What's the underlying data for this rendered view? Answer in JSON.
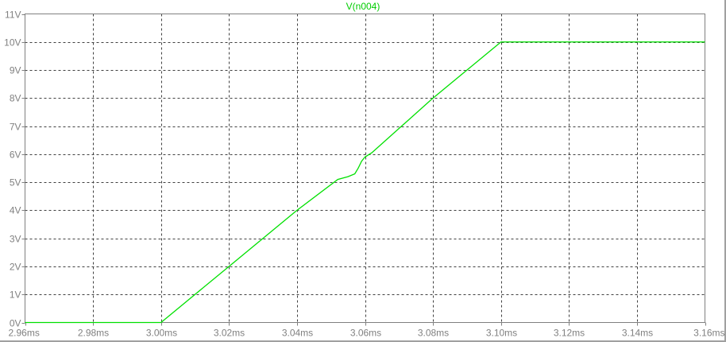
{
  "chart_data": {
    "type": "line",
    "title": "V(n004)",
    "xlabel": "",
    "ylabel": "",
    "xlim": [
      2.96,
      3.16
    ],
    "ylim": [
      0,
      11
    ],
    "x_ticks": [
      2.96,
      2.98,
      3.0,
      3.02,
      3.04,
      3.06,
      3.08,
      3.1,
      3.12,
      3.14,
      3.16
    ],
    "x_tick_labels": [
      "2.96ms",
      "2.98ms",
      "3.00ms",
      "3.02ms",
      "3.04ms",
      "3.06ms",
      "3.08ms",
      "3.10ms",
      "3.12ms",
      "3.14ms",
      "3.16ms"
    ],
    "y_ticks": [
      0,
      1,
      2,
      3,
      4,
      5,
      6,
      7,
      8,
      9,
      10,
      11
    ],
    "y_tick_labels": [
      "0V",
      "1V",
      "2V",
      "3V",
      "4V",
      "5V",
      "6V",
      "7V",
      "8V",
      "9V",
      "10V",
      "11V"
    ],
    "grid": true,
    "series": [
      {
        "name": "V(n004)",
        "color": "#00e000",
        "x": [
          2.96,
          3.0,
          3.02,
          3.04,
          3.052,
          3.055,
          3.057,
          3.058,
          3.059,
          3.06,
          3.062,
          3.08,
          3.1,
          3.16
        ],
        "y": [
          0,
          0,
          2,
          4,
          5.1,
          5.2,
          5.3,
          5.5,
          5.75,
          5.9,
          6.05,
          8,
          10,
          10
        ]
      }
    ]
  }
}
